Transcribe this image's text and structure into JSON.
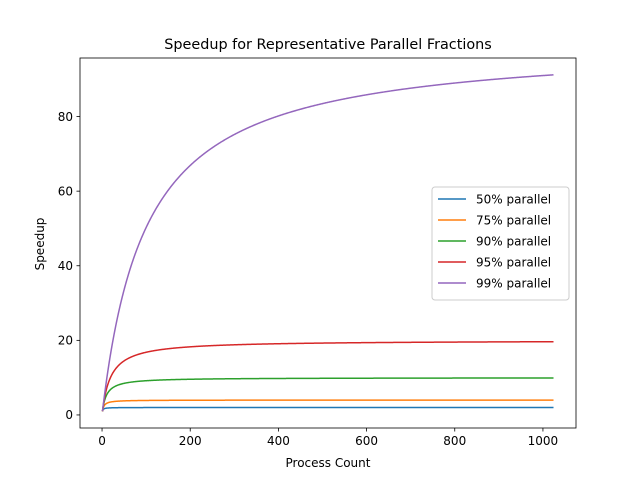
{
  "chart_data": {
    "type": "line",
    "title": "Speedup for Representative Parallel Fractions",
    "xlabel": "Process Count",
    "ylabel": "Speedup",
    "xlim": [
      -50,
      1075
    ],
    "ylim": [
      -3.5,
      95.7
    ],
    "x_ticks": [
      0,
      200,
      400,
      600,
      800,
      1000
    ],
    "y_ticks": [
      0,
      20,
      40,
      60,
      80
    ],
    "grid": false,
    "legend_position": "center-right",
    "x_range": [
      1,
      1024
    ],
    "series": [
      {
        "name": "50% parallel",
        "color": "#1f77b4",
        "parallel_fraction": 0.5
      },
      {
        "name": "75% parallel",
        "color": "#ff7f0e",
        "parallel_fraction": 0.75
      },
      {
        "name": "90% parallel",
        "color": "#2ca02c",
        "parallel_fraction": 0.9
      },
      {
        "name": "95% parallel",
        "color": "#d62728",
        "parallel_fraction": 0.95
      },
      {
        "name": "99% parallel",
        "color": "#9467bd",
        "parallel_fraction": 0.99
      }
    ]
  }
}
